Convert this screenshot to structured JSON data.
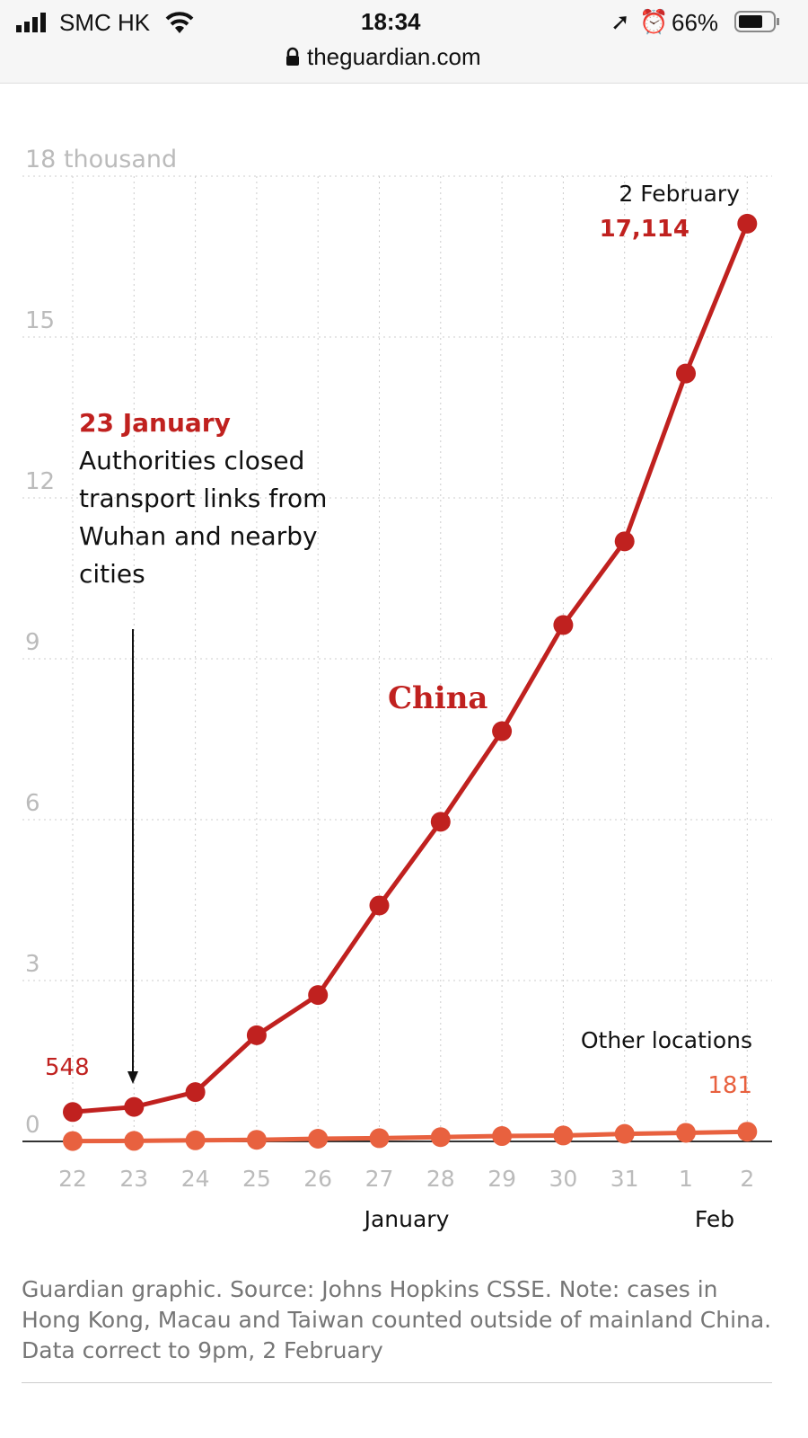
{
  "status_bar": {
    "carrier": "SMC HK",
    "time": "18:34",
    "battery": "66%",
    "url": "theguardian.com",
    "icons": [
      "signal-icon",
      "wifi-icon",
      "location-icon",
      "alarm-icon",
      "battery-icon",
      "lock-icon"
    ]
  },
  "chart_data": {
    "type": "line",
    "title": "",
    "y_unit_label": "18 thousand",
    "y_ticks": [
      "0",
      "3",
      "6",
      "9",
      "12",
      "15"
    ],
    "ylim": [
      0,
      18000
    ],
    "x": [
      "22",
      "23",
      "24",
      "25",
      "26",
      "27",
      "28",
      "29",
      "30",
      "31",
      "1",
      "2"
    ],
    "x_group_labels": [
      "January",
      "Feb"
    ],
    "grid": true,
    "series": [
      {
        "name": "China",
        "color": "#c0211f",
        "values": [
          548,
          643,
          920,
          1980,
          2730,
          4400,
          5960,
          7650,
          9630,
          11190,
          14320,
          17114
        ]
      },
      {
        "name": "Other locations",
        "color": "#e8613f",
        "values": [
          7,
          10,
          20,
          30,
          50,
          60,
          80,
          100,
          110,
          140,
          160,
          181
        ]
      }
    ],
    "annotations": {
      "lockdown_date": "23 January",
      "lockdown_text": [
        "Authorities closed",
        "transport links from",
        "Wuhan and nearby",
        "cities"
      ],
      "end_date": "2 February",
      "end_value": "17,114",
      "start_value": "548",
      "other_value": "181"
    }
  },
  "footer": "Guardian graphic. Source: Johns Hopkins CSSE. Note: cases in Hong Kong, Macau and Taiwan counted outside of mainland China. Data correct to 9pm, 2 February"
}
